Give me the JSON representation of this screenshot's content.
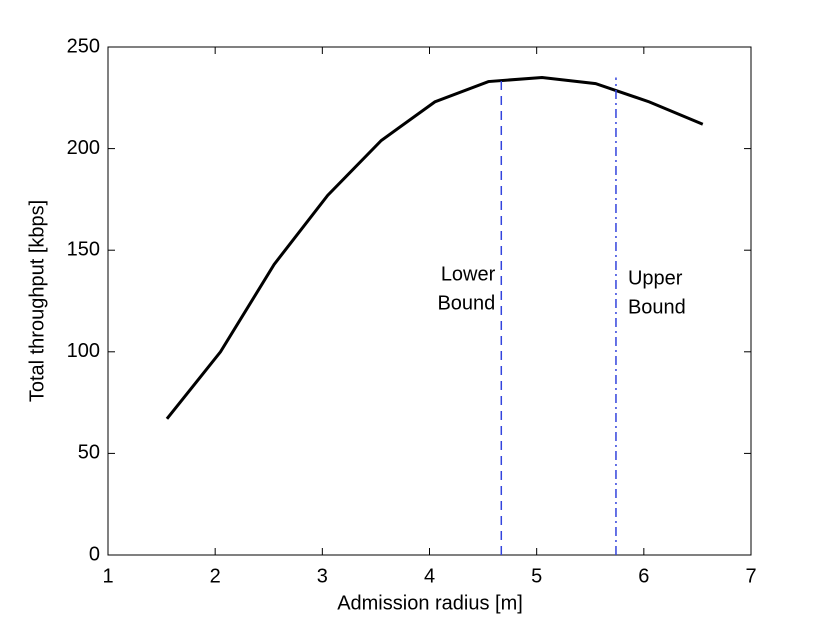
{
  "chart_data": {
    "type": "line",
    "x": [
      1.55,
      2.05,
      2.55,
      3.05,
      3.55,
      4.05,
      4.55,
      5.05,
      5.55,
      6.05,
      6.55
    ],
    "values": [
      67,
      100,
      143,
      177,
      204,
      223,
      233,
      235,
      232,
      223,
      212
    ],
    "color": "#000000",
    "xlabel": "Admission radius [m]",
    "ylabel": "Total throughput [kbps]",
    "xlim": [
      1,
      7
    ],
    "xticks": [
      1,
      2,
      3,
      4,
      5,
      6,
      7
    ],
    "ylim": [
      0,
      250
    ],
    "yticks": [
      0,
      50,
      100,
      150,
      200,
      250
    ],
    "vlines": [
      {
        "x": 4.67,
        "y_range": [
          0,
          235
        ],
        "style": "dashed",
        "color": "#3344dd",
        "label": [
          "Lower",
          "Bound"
        ],
        "label_side": "left"
      },
      {
        "x": 5.74,
        "y_range": [
          0,
          235
        ],
        "style": "dashdot",
        "color": "#3344dd",
        "label": [
          "Upper",
          "Bound"
        ],
        "label_side": "right"
      }
    ]
  }
}
